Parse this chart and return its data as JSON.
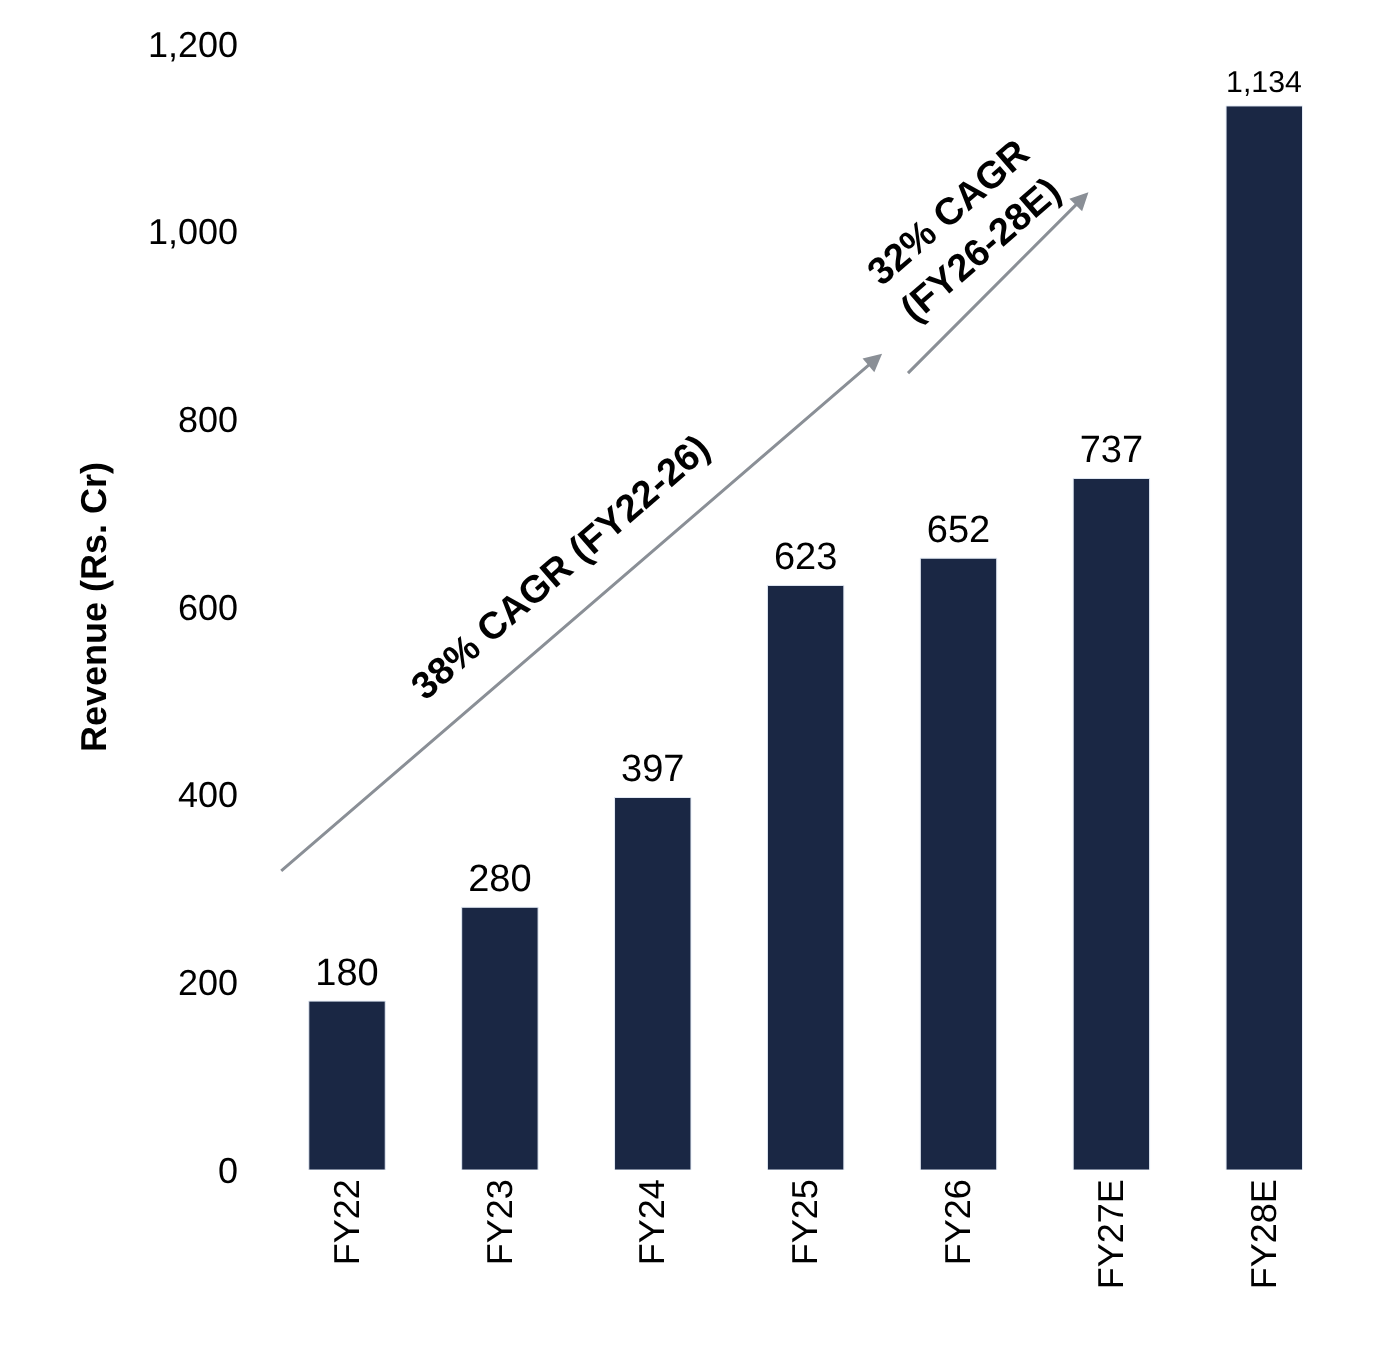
{
  "chart_data": {
    "type": "bar",
    "ylabel": "Revenue (Rs. Cr)",
    "categories": [
      "FY22",
      "FY23",
      "FY24",
      "FY25",
      "FY26",
      "FY27E",
      "FY28E"
    ],
    "values": [
      180,
      280,
      397,
      623,
      652,
      737,
      1134
    ],
    "value_labels": [
      "180",
      "280",
      "397",
      "623",
      "652",
      "737",
      "1,134"
    ],
    "color": "#1a2744",
    "ylim": [
      0,
      1200
    ],
    "yticks": [
      0,
      200,
      400,
      600,
      800,
      {
        "value": 1000,
        "label": "1,000"
      },
      {
        "value": 1200,
        "label": "1,200"
      }
    ],
    "annotations": [
      "38% CAGR (FY22-26)",
      "32% CAGR\n(FY26-28E)"
    ]
  }
}
